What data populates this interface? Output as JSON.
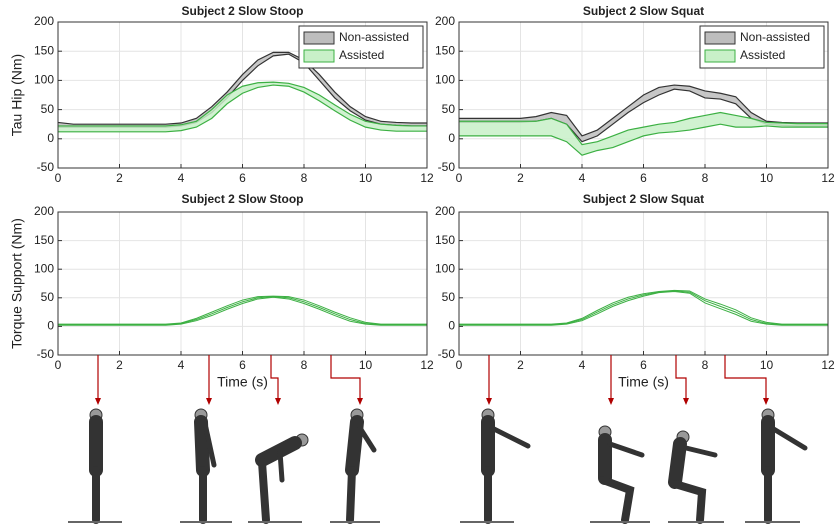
{
  "chart_data": [
    {
      "type": "band",
      "title": "Subject 2 Slow Stoop",
      "ylabel": "Tau Hip (Nm)",
      "x": [
        0,
        0.5,
        1,
        1.5,
        2,
        2.5,
        3,
        3.5,
        4,
        4.5,
        5,
        5.5,
        6,
        6.5,
        7,
        7.5,
        8,
        8.5,
        9,
        9.5,
        10,
        10.5,
        11,
        11.5,
        12
      ],
      "xlim": [
        0,
        12
      ],
      "ylim": [
        -50,
        200
      ],
      "xticks": [
        0,
        2,
        4,
        6,
        8,
        10,
        12
      ],
      "yticks": [
        -50,
        0,
        50,
        100,
        150,
        200
      ],
      "grid": true,
      "legend": "upper right",
      "series": [
        {
          "name": "Non-assisted",
          "color": "#333333",
          "fill": "#bdbdbd",
          "upper": [
            28,
            25,
            25,
            25,
            25,
            25,
            25,
            25,
            27,
            35,
            55,
            80,
            110,
            135,
            148,
            148,
            135,
            110,
            80,
            55,
            38,
            30,
            28,
            27,
            27
          ],
          "lower": [
            20,
            20,
            20,
            20,
            20,
            20,
            20,
            20,
            22,
            28,
            45,
            70,
            100,
            125,
            142,
            145,
            130,
            100,
            70,
            48,
            32,
            25,
            23,
            22,
            22
          ]
        },
        {
          "name": "Assisted",
          "color": "#3cb043",
          "fill": "#c8f0c8",
          "upper": [
            22,
            22,
            22,
            22,
            22,
            22,
            22,
            22,
            24,
            30,
            50,
            75,
            90,
            96,
            97,
            95,
            88,
            75,
            58,
            42,
            30,
            25,
            23,
            22,
            22
          ],
          "lower": [
            12,
            12,
            12,
            12,
            12,
            12,
            12,
            12,
            14,
            20,
            35,
            60,
            78,
            88,
            92,
            90,
            80,
            65,
            48,
            32,
            20,
            15,
            13,
            13,
            13
          ]
        }
      ]
    },
    {
      "type": "band",
      "title": "Subject 2 Slow Squat",
      "x": [
        0,
        0.5,
        1,
        1.5,
        2,
        2.5,
        3,
        3.5,
        4,
        4.5,
        5,
        5.5,
        6,
        6.5,
        7,
        7.5,
        8,
        8.5,
        9,
        9.5,
        10,
        10.5,
        11,
        11.5,
        12
      ],
      "xlim": [
        0,
        12
      ],
      "ylim": [
        -50,
        200
      ],
      "xticks": [
        0,
        2,
        4,
        6,
        8,
        10,
        12
      ],
      "yticks": [
        -50,
        0,
        50,
        100,
        150,
        200
      ],
      "grid": true,
      "legend": "upper right",
      "series": [
        {
          "name": "Non-assisted",
          "color": "#333333",
          "fill": "#bdbdbd",
          "upper": [
            35,
            35,
            35,
            35,
            35,
            38,
            45,
            40,
            5,
            15,
            35,
            55,
            75,
            88,
            92,
            90,
            82,
            78,
            72,
            45,
            30,
            28,
            27,
            27,
            27
          ],
          "lower": [
            28,
            28,
            28,
            28,
            28,
            30,
            35,
            25,
            -5,
            5,
            25,
            45,
            62,
            75,
            85,
            82,
            70,
            68,
            60,
            35,
            25,
            23,
            22,
            22,
            22
          ]
        },
        {
          "name": "Assisted",
          "color": "#3cb043",
          "fill": "#c8f0c8",
          "upper": [
            30,
            30,
            30,
            30,
            30,
            30,
            35,
            25,
            -10,
            -5,
            5,
            15,
            20,
            25,
            28,
            35,
            40,
            45,
            40,
            35,
            28,
            27,
            26,
            26,
            26
          ],
          "lower": [
            5,
            5,
            5,
            5,
            5,
            5,
            5,
            -5,
            -28,
            -20,
            -15,
            -5,
            5,
            10,
            12,
            15,
            20,
            25,
            20,
            20,
            22,
            20,
            20,
            20,
            20
          ]
        }
      ]
    },
    {
      "type": "line",
      "title": "Subject 2 Slow Stoop",
      "ylabel": "Torque Support (Nm)",
      "xlabel": "Time (s)",
      "x": [
        0,
        0.5,
        1,
        1.5,
        2,
        2.5,
        3,
        3.5,
        4,
        4.5,
        5,
        5.5,
        6,
        6.5,
        7,
        7.5,
        8,
        8.5,
        9,
        9.5,
        10,
        10.5,
        11,
        11.5,
        12
      ],
      "xlim": [
        0,
        12
      ],
      "ylim": [
        -50,
        200
      ],
      "xticks": [
        0,
        2,
        4,
        6,
        8,
        10,
        12
      ],
      "yticks": [
        -50,
        0,
        50,
        100,
        150,
        200
      ],
      "grid": true,
      "series": [
        {
          "color": "#3cb043",
          "values": [
            3,
            3,
            3,
            3,
            3,
            3,
            3,
            3,
            5,
            12,
            22,
            33,
            43,
            50,
            52,
            50,
            43,
            33,
            22,
            12,
            5,
            3,
            3,
            3,
            3
          ]
        },
        {
          "color": "#3cb043",
          "values": [
            2,
            2,
            2,
            2,
            2,
            2,
            2,
            2,
            4,
            10,
            19,
            30,
            40,
            48,
            51,
            48,
            40,
            30,
            19,
            9,
            4,
            2,
            2,
            2,
            2
          ]
        },
        {
          "color": "#3cb043",
          "values": [
            4,
            4,
            4,
            4,
            4,
            4,
            4,
            4,
            6,
            14,
            25,
            36,
            46,
            52,
            53,
            52,
            46,
            36,
            25,
            15,
            7,
            4,
            4,
            4,
            4
          ]
        }
      ]
    },
    {
      "type": "line",
      "title": "Subject 2 Slow Squat",
      "xlabel": "Time (s)",
      "x": [
        0,
        0.5,
        1,
        1.5,
        2,
        2.5,
        3,
        3.5,
        4,
        4.5,
        5,
        5.5,
        6,
        6.5,
        7,
        7.5,
        8,
        8.5,
        9,
        9.5,
        10,
        10.5,
        11,
        11.5,
        12
      ],
      "xlim": [
        0,
        12
      ],
      "ylim": [
        -50,
        200
      ],
      "xticks": [
        0,
        2,
        4,
        6,
        8,
        10,
        12
      ],
      "yticks": [
        -50,
        0,
        50,
        100,
        150,
        200
      ],
      "grid": true,
      "series": [
        {
          "color": "#3cb043",
          "values": [
            3,
            3,
            3,
            3,
            3,
            3,
            3,
            5,
            12,
            25,
            38,
            48,
            55,
            60,
            62,
            60,
            45,
            35,
            25,
            12,
            5,
            3,
            3,
            3,
            3
          ]
        },
        {
          "color": "#3cb043",
          "values": [
            2,
            2,
            2,
            2,
            2,
            2,
            2,
            4,
            10,
            22,
            35,
            45,
            53,
            59,
            61,
            58,
            41,
            31,
            21,
            9,
            4,
            2,
            2,
            2,
            2
          ]
        },
        {
          "color": "#3cb043",
          "values": [
            4,
            4,
            4,
            4,
            4,
            4,
            4,
            6,
            14,
            28,
            41,
            51,
            57,
            61,
            63,
            62,
            48,
            39,
            29,
            15,
            7,
            4,
            4,
            4,
            4
          ]
        }
      ]
    }
  ]
}
